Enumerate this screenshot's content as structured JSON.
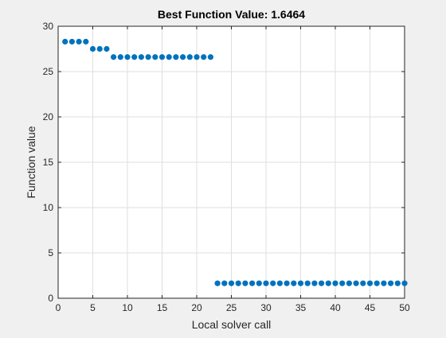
{
  "colors": {
    "figure_background": "#f0f0f0",
    "axes_background": "#ffffff",
    "marker": "#0072bd",
    "axis": "#262626",
    "grid": "#dfdfdf"
  },
  "chart_data": {
    "type": "scatter",
    "title": "Best Function Value: 1.6464",
    "xlabel": "Local solver call",
    "ylabel": "Function value",
    "xlim": [
      0,
      50
    ],
    "ylim": [
      0,
      30
    ],
    "xticks": [
      0,
      5,
      10,
      15,
      20,
      25,
      30,
      35,
      40,
      45,
      50
    ],
    "yticks": [
      0,
      5,
      10,
      15,
      20,
      25,
      30
    ],
    "grid": true,
    "legend": "none",
    "marker": "filled-circle",
    "series": [
      {
        "x": [
          1,
          2,
          3,
          4,
          5,
          6,
          7,
          8,
          9,
          10,
          11,
          12,
          13,
          14,
          15,
          16,
          17,
          18,
          19,
          20,
          21,
          22,
          23,
          24,
          25,
          26,
          27,
          28,
          29,
          30,
          31,
          32,
          33,
          34,
          35,
          36,
          37,
          38,
          39,
          40,
          41,
          42,
          43,
          44,
          45,
          46,
          47,
          48,
          49,
          50
        ],
        "y": [
          28.3,
          28.3,
          28.3,
          28.3,
          27.5,
          27.5,
          27.5,
          26.6,
          26.6,
          26.6,
          26.6,
          26.6,
          26.6,
          26.6,
          26.6,
          26.6,
          26.6,
          26.6,
          26.6,
          26.6,
          26.6,
          26.6,
          1.6464,
          1.6464,
          1.6464,
          1.6464,
          1.6464,
          1.6464,
          1.6464,
          1.6464,
          1.6464,
          1.6464,
          1.6464,
          1.6464,
          1.6464,
          1.6464,
          1.6464,
          1.6464,
          1.6464,
          1.6464,
          1.6464,
          1.6464,
          1.6464,
          1.6464,
          1.6464,
          1.6464,
          1.6464,
          1.6464,
          1.6464,
          1.6464
        ]
      }
    ]
  }
}
